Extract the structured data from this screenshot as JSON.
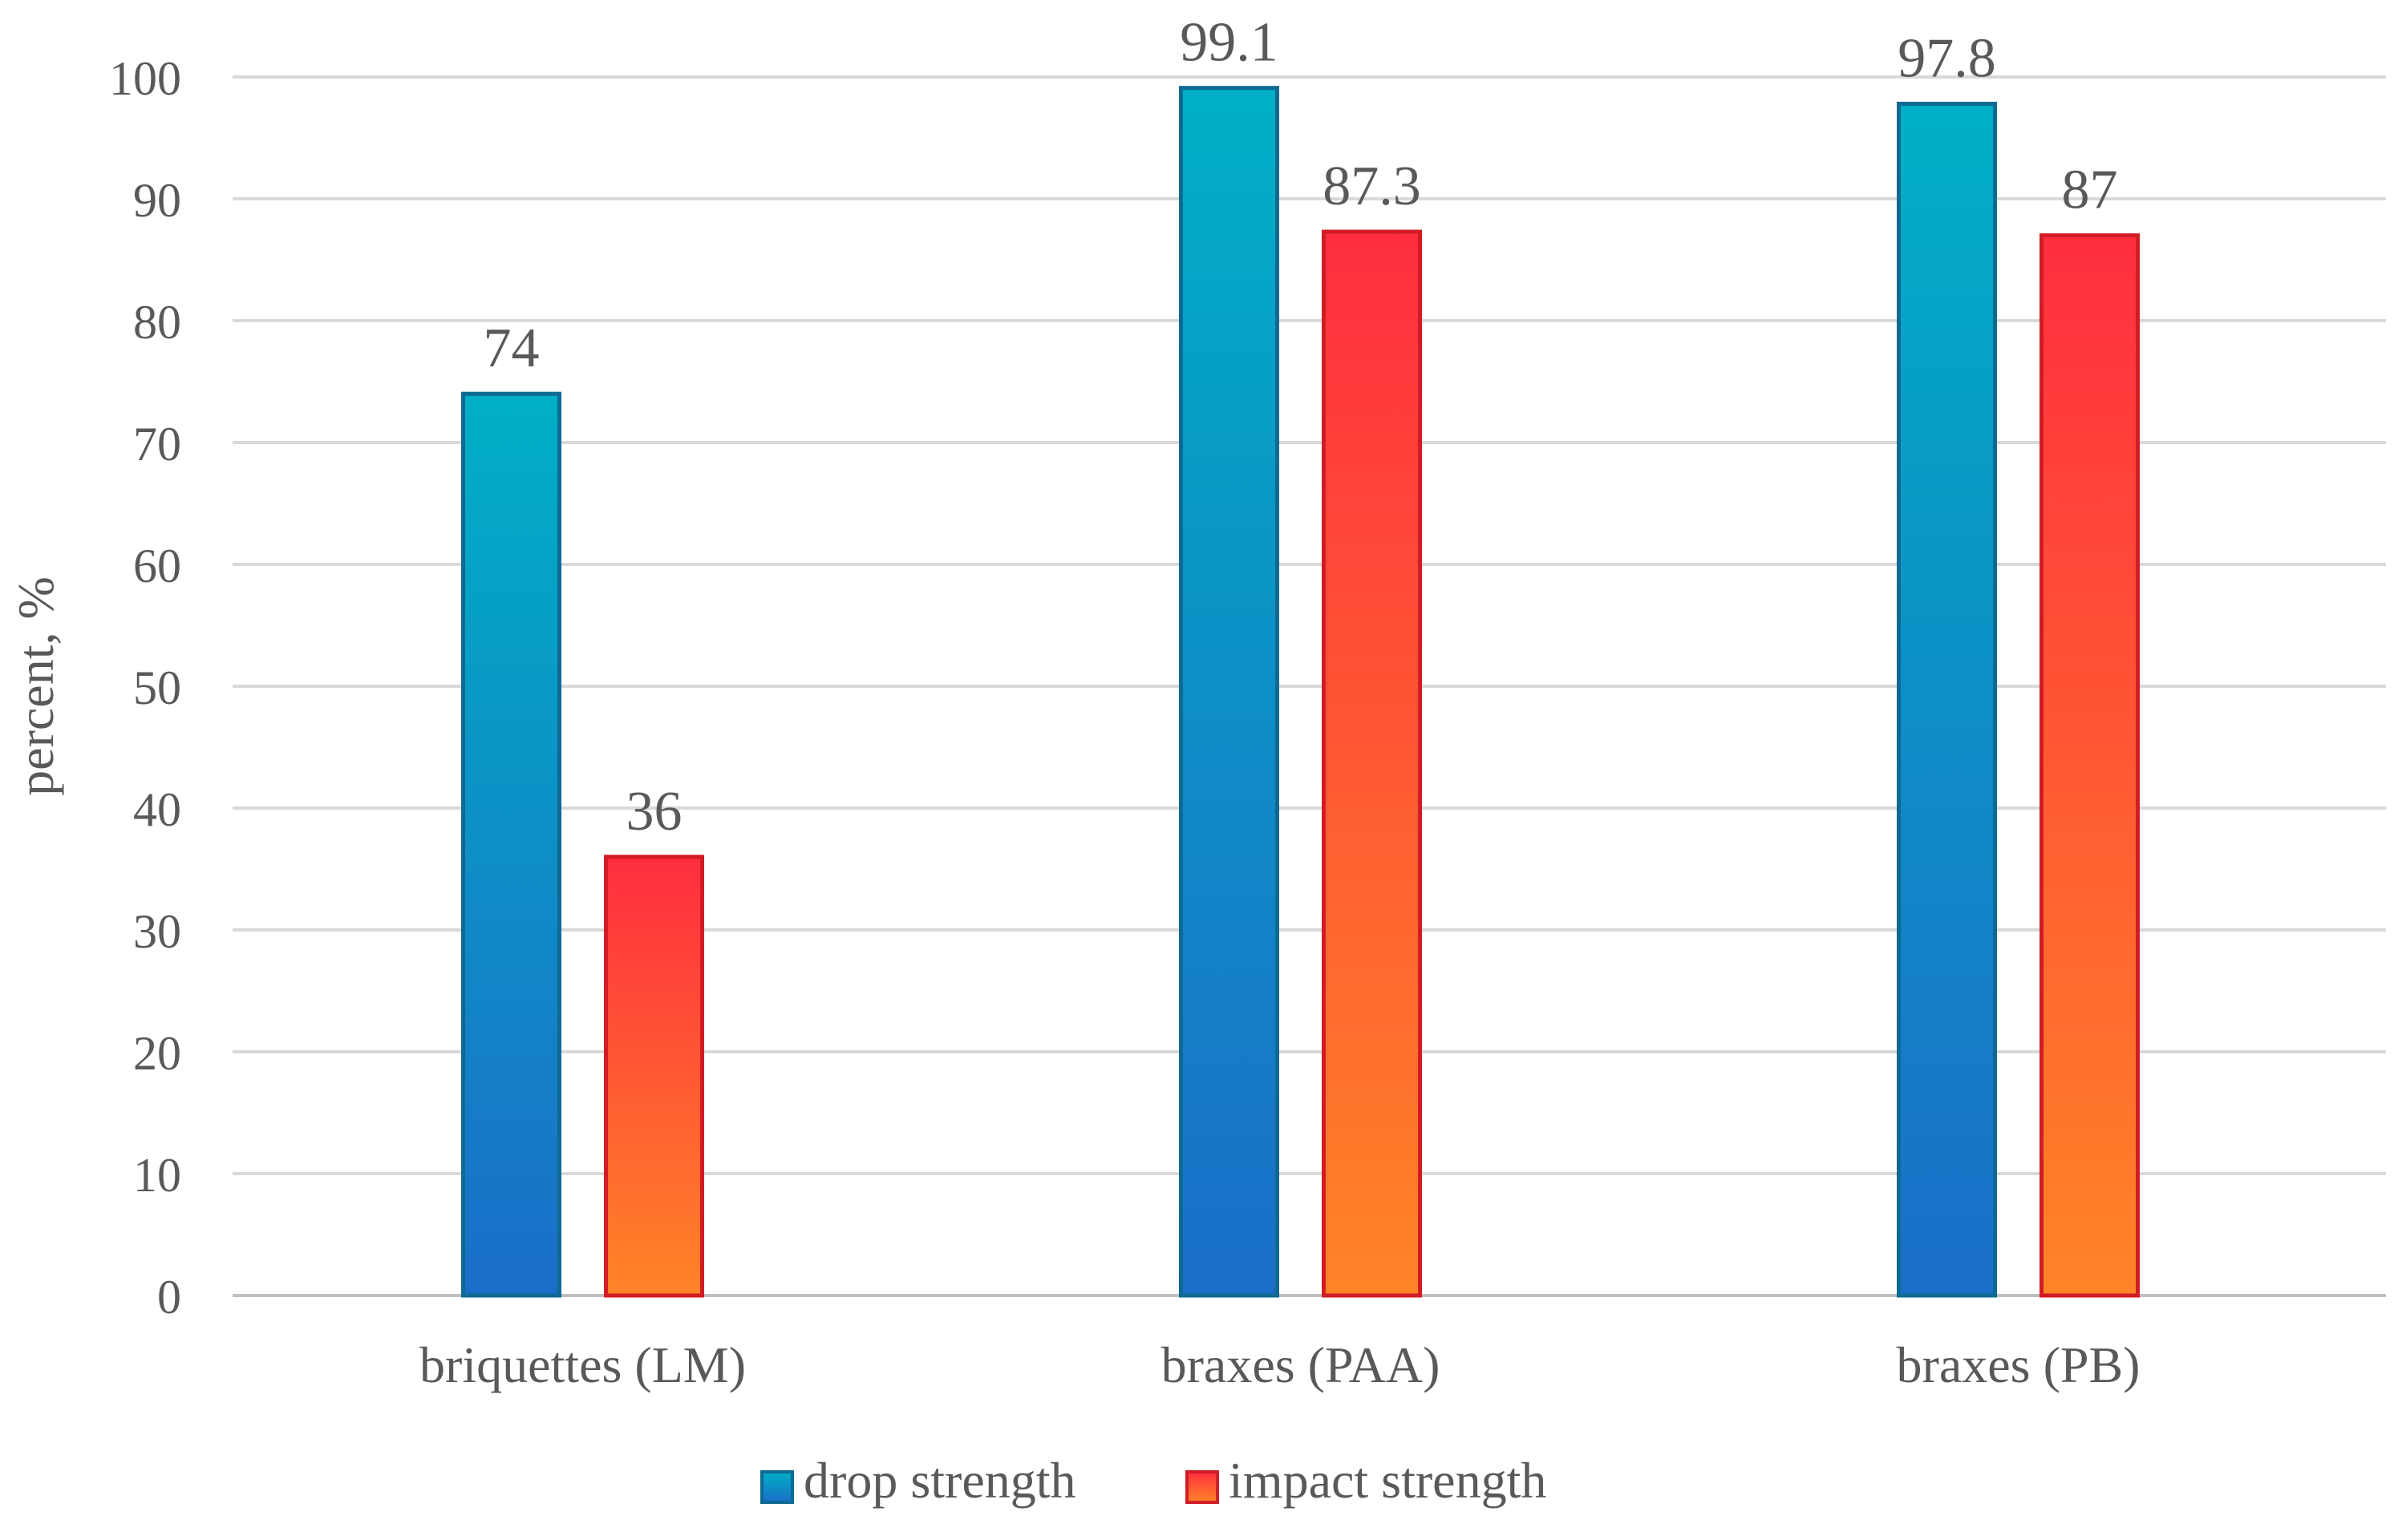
{
  "chart_data": {
    "type": "bar",
    "title": "",
    "xlabel": "",
    "ylabel": "percent, %",
    "ylim": [
      0,
      100
    ],
    "yticks": [
      0,
      10,
      20,
      30,
      40,
      50,
      60,
      70,
      80,
      90,
      100
    ],
    "grid": true,
    "legend_position": "bottom",
    "categories": [
      "briquettes (LM)",
      "braxes (PAA)",
      "braxes (PB)"
    ],
    "series": [
      {
        "name": "drop strength",
        "values": [
          74,
          99.1,
          97.8
        ],
        "labels": [
          "74",
          "99.1",
          "97.8"
        ],
        "color_top": "#00AFC5",
        "color_bottom": "#1B6EC8",
        "border": "#0E6A92"
      },
      {
        "name": "impact strength",
        "values": [
          36,
          87.3,
          87
        ],
        "labels": [
          "36",
          "87.3",
          "87"
        ],
        "color_top": "#FF2E3F",
        "color_bottom": "#FF8427",
        "border": "#D11C25"
      }
    ],
    "colors": {
      "grid": "#D9D9D9",
      "axis": "#BFBFBF",
      "text": "#595959"
    }
  }
}
